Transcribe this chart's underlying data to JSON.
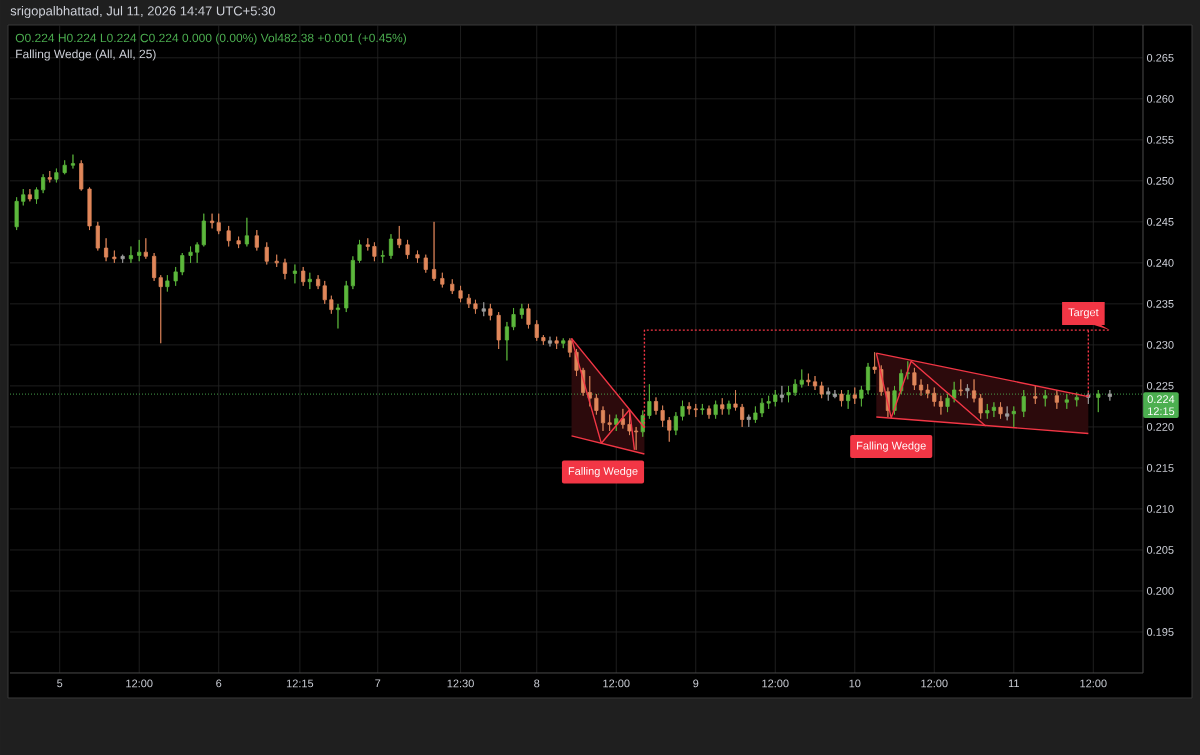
{
  "chart_data": {
    "type": "candlestick",
    "subtitle": "O0.224 H0.224 L0.224 C0.224 0.000 (0.00%) Vol482.38 +0.001 (+0.45%)",
    "annotations": [
      "srigopalbhattad, Jul 11, 2026 14:47 UTC+5:30",
      "Falling Wedge (All, All, 25)",
      "12:15",
      {
        "text": "Falling Wedge",
        "x": "2026-07-08T10:00",
        "y": 0.218
      },
      {
        "text": "Falling Wedge",
        "x": "2026-07-10T05:30",
        "y": 0.2211
      },
      {
        "text": "Target",
        "x": "2026-07-11T14:30",
        "y": 0.2318
      }
    ],
    "x": [
      "2026-07-04T17:30",
      "2026-07-04T18:30",
      "2026-07-04T19:30",
      "2026-07-04T20:30",
      "2026-07-04T21:30",
      "2026-07-04T22:30",
      "2026-07-04T23:30",
      "2026-07-05T00:45",
      "2026-07-05T02:00",
      "2026-07-05T03:15",
      "2026-07-05T04:30",
      "2026-07-05T05:45",
      "2026-07-05T07:00",
      "2026-07-05T08:15",
      "2026-07-05T09:30",
      "2026-07-05T10:45",
      "2026-07-05T12:00",
      "2026-07-05T13:00",
      "2026-07-05T14:15",
      "2026-07-05T15:15",
      "2026-07-05T16:15",
      "2026-07-05T17:30",
      "2026-07-05T18:30",
      "2026-07-05T19:45",
      "2026-07-05T20:45",
      "2026-07-05T21:45",
      "2026-07-05T23:00",
      "2026-07-06T00:00",
      "2026-07-06T01:30",
      "2026-07-06T03:00",
      "2026-07-06T04:15",
      "2026-07-06T05:45",
      "2026-07-06T07:15",
      "2026-07-06T08:45",
      "2026-07-06T10:00",
      "2026-07-06T11:30",
      "2026-07-06T12:45",
      "2026-07-06T13:45",
      "2026-07-06T15:00",
      "2026-07-06T16:00",
      "2026-07-06T17:00",
      "2026-07-06T18:00",
      "2026-07-06T19:15",
      "2026-07-06T20:15",
      "2026-07-06T21:15",
      "2026-07-06T22:30",
      "2026-07-06T23:30",
      "2026-07-07T00:45",
      "2026-07-07T02:00",
      "2026-07-07T03:15",
      "2026-07-07T04:30",
      "2026-07-07T06:00",
      "2026-07-07T07:15",
      "2026-07-07T08:30",
      "2026-07-07T09:45",
      "2026-07-07T11:15",
      "2026-07-07T12:30",
      "2026-07-07T13:45",
      "2026-07-07T14:45",
      "2026-07-07T16:00",
      "2026-07-07T17:00",
      "2026-07-07T18:15",
      "2026-07-07T19:30",
      "2026-07-07T20:30",
      "2026-07-07T21:45",
      "2026-07-07T22:45",
      "2026-07-08T00:00",
      "2026-07-08T01:00",
      "2026-07-08T02:00",
      "2026-07-08T03:00",
      "2026-07-08T04:00",
      "2026-07-08T05:00",
      "2026-07-08T06:00",
      "2026-07-08T07:00",
      "2026-07-08T08:00",
      "2026-07-08T09:00",
      "2026-07-08T10:00",
      "2026-07-08T11:00",
      "2026-07-08T12:00",
      "2026-07-08T13:00",
      "2026-07-08T14:00",
      "2026-07-08T15:00",
      "2026-07-08T16:00",
      "2026-07-08T17:00",
      "2026-07-08T18:00",
      "2026-07-08T19:00",
      "2026-07-08T20:00",
      "2026-07-08T21:00",
      "2026-07-08T22:00",
      "2026-07-08T23:00",
      "2026-07-09T00:00",
      "2026-07-09T01:00",
      "2026-07-09T02:00",
      "2026-07-09T03:00",
      "2026-07-09T04:00",
      "2026-07-09T05:00",
      "2026-07-09T06:00",
      "2026-07-09T07:00",
      "2026-07-09T08:00",
      "2026-07-09T09:00",
      "2026-07-09T10:00",
      "2026-07-09T11:00",
      "2026-07-09T12:00",
      "2026-07-09T13:00",
      "2026-07-09T14:00",
      "2026-07-09T15:00",
      "2026-07-09T16:00",
      "2026-07-09T17:00",
      "2026-07-09T18:00",
      "2026-07-09T19:00",
      "2026-07-09T20:00",
      "2026-07-09T21:00",
      "2026-07-09T22:00",
      "2026-07-09T23:00",
      "2026-07-10T00:00",
      "2026-07-10T01:00",
      "2026-07-10T02:00",
      "2026-07-10T03:00",
      "2026-07-10T04:00",
      "2026-07-10T05:00",
      "2026-07-10T06:00",
      "2026-07-10T07:00",
      "2026-07-10T08:00",
      "2026-07-10T09:00",
      "2026-07-10T10:00",
      "2026-07-10T11:00",
      "2026-07-10T12:00",
      "2026-07-10T13:00",
      "2026-07-10T14:00",
      "2026-07-10T15:00",
      "2026-07-10T16:00",
      "2026-07-10T17:00",
      "2026-07-10T18:00",
      "2026-07-10T19:00",
      "2026-07-10T20:00",
      "2026-07-10T21:00",
      "2026-07-10T22:00",
      "2026-07-10T23:00",
      "2026-07-11T00:00",
      "2026-07-11T01:30",
      "2026-07-11T03:15",
      "2026-07-11T04:45",
      "2026-07-11T06:30",
      "2026-07-11T08:00",
      "2026-07-11T09:30",
      "2026-07-11T11:15",
      "2026-07-11T12:45",
      "2026-07-11T14:30"
    ],
    "ohlc": [
      [
        0.2444,
        0.248,
        0.244,
        0.2475
      ],
      [
        0.2475,
        0.249,
        0.247,
        0.2483
      ],
      [
        0.2483,
        0.249,
        0.2475,
        0.2478
      ],
      [
        0.2478,
        0.2492,
        0.2472,
        0.2489
      ],
      [
        0.2489,
        0.2508,
        0.2485,
        0.2504
      ],
      [
        0.2504,
        0.2512,
        0.2498,
        0.2502
      ],
      [
        0.2502,
        0.2515,
        0.2498,
        0.251
      ],
      [
        0.251,
        0.2525,
        0.2508,
        0.2519
      ],
      [
        0.2519,
        0.2532,
        0.2515,
        0.2521
      ],
      [
        0.2521,
        0.2525,
        0.2488,
        0.249
      ],
      [
        0.249,
        0.2492,
        0.244,
        0.2445
      ],
      [
        0.2445,
        0.245,
        0.2415,
        0.2418
      ],
      [
        0.2418,
        0.243,
        0.2402,
        0.2407
      ],
      [
        0.2407,
        0.2415,
        0.24,
        0.2405
      ],
      [
        0.2405,
        0.241,
        0.24,
        0.2408
      ],
      [
        0.2405,
        0.242,
        0.24,
        0.2409
      ],
      [
        0.2409,
        0.2428,
        0.2402,
        0.2413
      ],
      [
        0.2413,
        0.243,
        0.2405,
        0.2408
      ],
      [
        0.2408,
        0.2412,
        0.2378,
        0.2382
      ],
      [
        0.2382,
        0.2385,
        0.2302,
        0.2371
      ],
      [
        0.2371,
        0.2385,
        0.2365,
        0.2378
      ],
      [
        0.2378,
        0.2395,
        0.2372,
        0.2389
      ],
      [
        0.2389,
        0.2412,
        0.2385,
        0.2409
      ],
      [
        0.2409,
        0.242,
        0.24,
        0.2413
      ],
      [
        0.2413,
        0.2425,
        0.24,
        0.2422
      ],
      [
        0.2422,
        0.246,
        0.242,
        0.2451
      ],
      [
        0.2451,
        0.246,
        0.2442,
        0.2449
      ],
      [
        0.2449,
        0.246,
        0.2435,
        0.2439
      ],
      [
        0.2439,
        0.2445,
        0.242,
        0.2427
      ],
      [
        0.2427,
        0.2432,
        0.2418,
        0.2423
      ],
      [
        0.2423,
        0.2455,
        0.242,
        0.2433
      ],
      [
        0.2433,
        0.244,
        0.2415,
        0.2419
      ],
      [
        0.2419,
        0.2425,
        0.2398,
        0.2402
      ],
      [
        0.2402,
        0.241,
        0.2395,
        0.24
      ],
      [
        0.24,
        0.2405,
        0.238,
        0.2387
      ],
      [
        0.2387,
        0.2398,
        0.2375,
        0.239
      ],
      [
        0.239,
        0.2395,
        0.2372,
        0.2377
      ],
      [
        0.2377,
        0.2388,
        0.2368,
        0.238
      ],
      [
        0.238,
        0.2385,
        0.2368,
        0.2372
      ],
      [
        0.2372,
        0.2378,
        0.235,
        0.2355
      ],
      [
        0.2355,
        0.236,
        0.2338,
        0.2343
      ],
      [
        0.2343,
        0.235,
        0.232,
        0.2345
      ],
      [
        0.2345,
        0.2378,
        0.234,
        0.2372
      ],
      [
        0.2372,
        0.2408,
        0.2368,
        0.2403
      ],
      [
        0.2403,
        0.2428,
        0.24,
        0.2422
      ],
      [
        0.2422,
        0.243,
        0.2415,
        0.242
      ],
      [
        0.242,
        0.2425,
        0.2402,
        0.2408
      ],
      [
        0.2408,
        0.2415,
        0.24,
        0.2409
      ],
      [
        0.2409,
        0.2435,
        0.2405,
        0.2429
      ],
      [
        0.2429,
        0.2445,
        0.2418,
        0.2422
      ],
      [
        0.2422,
        0.2428,
        0.2405,
        0.241
      ],
      [
        0.241,
        0.2415,
        0.24,
        0.2406
      ],
      [
        0.2406,
        0.241,
        0.2388,
        0.2392
      ],
      [
        0.2392,
        0.245,
        0.2378,
        0.2381
      ],
      [
        0.2381,
        0.2388,
        0.237,
        0.2374
      ],
      [
        0.2374,
        0.238,
        0.2362,
        0.2366
      ],
      [
        0.2366,
        0.2372,
        0.2352,
        0.2357
      ],
      [
        0.2357,
        0.2362,
        0.2345,
        0.235
      ],
      [
        0.235,
        0.2355,
        0.2338,
        0.2344
      ],
      [
        0.2344,
        0.2352,
        0.2335,
        0.2341
      ],
      [
        0.2344,
        0.235,
        0.233,
        0.2336
      ],
      [
        0.2336,
        0.234,
        0.2295,
        0.2306
      ],
      [
        0.2306,
        0.2328,
        0.2281,
        0.2322
      ],
      [
        0.2322,
        0.2345,
        0.2318,
        0.2337
      ],
      [
        0.2337,
        0.235,
        0.2332,
        0.2344
      ],
      [
        0.2344,
        0.235,
        0.232,
        0.2325
      ],
      [
        0.2325,
        0.233,
        0.2305,
        0.2309
      ],
      [
        0.2309,
        0.2312,
        0.23,
        0.2305
      ],
      [
        0.2305,
        0.231,
        0.2298,
        0.2302
      ],
      [
        0.2305,
        0.231,
        0.2295,
        0.2302
      ],
      [
        0.2302,
        0.2308,
        0.2296,
        0.2305
      ],
      [
        0.2305,
        0.2308,
        0.2285,
        0.2291
      ],
      [
        0.2291,
        0.2295,
        0.2262,
        0.2269
      ],
      [
        0.2269,
        0.2272,
        0.2238,
        0.2242
      ],
      [
        0.2242,
        0.2262,
        0.2225,
        0.2235
      ],
      [
        0.2235,
        0.224,
        0.2215,
        0.222
      ],
      [
        0.222,
        0.2225,
        0.2195,
        0.2205
      ],
      [
        0.2205,
        0.2215,
        0.2195,
        0.2203
      ],
      [
        0.2203,
        0.2215,
        0.2195,
        0.221
      ],
      [
        0.221,
        0.2222,
        0.2198,
        0.2203
      ],
      [
        0.2203,
        0.222,
        0.219,
        0.2195
      ],
      [
        0.2195,
        0.22,
        0.2172,
        0.2194
      ],
      [
        0.2194,
        0.222,
        0.2188,
        0.2214
      ],
      [
        0.2214,
        0.2252,
        0.221,
        0.2231
      ],
      [
        0.2231,
        0.2236,
        0.2215,
        0.222
      ],
      [
        0.222,
        0.2226,
        0.22,
        0.2208
      ],
      [
        0.2208,
        0.2212,
        0.2182,
        0.2196
      ],
      [
        0.2196,
        0.2218,
        0.219,
        0.2213
      ],
      [
        0.2213,
        0.2232,
        0.2208,
        0.2225
      ],
      [
        0.2225,
        0.223,
        0.2215,
        0.2222
      ],
      [
        0.2222,
        0.2228,
        0.2212,
        0.2221
      ],
      [
        0.2221,
        0.2228,
        0.2215,
        0.2222
      ],
      [
        0.2222,
        0.2226,
        0.221,
        0.2215
      ],
      [
        0.2215,
        0.2232,
        0.221,
        0.2227
      ],
      [
        0.2227,
        0.2235,
        0.2215,
        0.2222
      ],
      [
        0.2222,
        0.2232,
        0.2215,
        0.2228
      ],
      [
        0.2228,
        0.2245,
        0.222,
        0.2224
      ],
      [
        0.2224,
        0.2228,
        0.22,
        0.2209
      ],
      [
        0.2209,
        0.2215,
        0.22,
        0.2212
      ],
      [
        0.2209,
        0.2225,
        0.2205,
        0.2217
      ],
      [
        0.2217,
        0.2235,
        0.2212,
        0.2229
      ],
      [
        0.2229,
        0.2238,
        0.2222,
        0.2231
      ],
      [
        0.2231,
        0.2245,
        0.2225,
        0.2239
      ],
      [
        0.2239,
        0.225,
        0.223,
        0.2236
      ],
      [
        0.2239,
        0.225,
        0.223,
        0.2242
      ],
      [
        0.2242,
        0.2258,
        0.2238,
        0.2252
      ],
      [
        0.2252,
        0.227,
        0.2248,
        0.2257
      ],
      [
        0.2257,
        0.2265,
        0.225,
        0.2255
      ],
      [
        0.2255,
        0.2262,
        0.2245,
        0.225
      ],
      [
        0.225,
        0.2255,
        0.2235,
        0.224
      ],
      [
        0.224,
        0.2248,
        0.2232,
        0.2243
      ],
      [
        0.224,
        0.2245,
        0.2235,
        0.2237
      ],
      [
        0.224,
        0.2245,
        0.2225,
        0.2232
      ],
      [
        0.2232,
        0.2245,
        0.2222,
        0.2239
      ],
      [
        0.2239,
        0.2248,
        0.2228,
        0.2235
      ],
      [
        0.2235,
        0.225,
        0.2225,
        0.2245
      ],
      [
        0.2245,
        0.2278,
        0.224,
        0.2273
      ],
      [
        0.2273,
        0.2291,
        0.2265,
        0.227
      ],
      [
        0.227,
        0.2275,
        0.2238,
        0.2243
      ],
      [
        0.2243,
        0.2248,
        0.2212,
        0.222
      ],
      [
        0.222,
        0.225,
        0.2215,
        0.2244
      ],
      [
        0.2244,
        0.227,
        0.224,
        0.2265
      ],
      [
        0.2265,
        0.228,
        0.2258,
        0.2266
      ],
      [
        0.2266,
        0.2272,
        0.2245,
        0.2251
      ],
      [
        0.2251,
        0.2258,
        0.2238,
        0.2245
      ],
      [
        0.2245,
        0.2252,
        0.2235,
        0.2241
      ],
      [
        0.2241,
        0.2248,
        0.2225,
        0.2231
      ],
      [
        0.2231,
        0.2238,
        0.2215,
        0.2225
      ],
      [
        0.2225,
        0.224,
        0.2218,
        0.2235
      ],
      [
        0.2235,
        0.2255,
        0.223,
        0.2245
      ],
      [
        0.2245,
        0.2258,
        0.2238,
        0.2244
      ],
      [
        0.2244,
        0.2252,
        0.2235,
        0.2247
      ],
      [
        0.2244,
        0.2258,
        0.223,
        0.2235
      ],
      [
        0.2235,
        0.224,
        0.221,
        0.2217
      ],
      [
        0.2217,
        0.2228,
        0.221,
        0.222
      ],
      [
        0.222,
        0.223,
        0.2212,
        0.2224
      ],
      [
        0.2224,
        0.223,
        0.221,
        0.2216
      ],
      [
        0.2216,
        0.2225,
        0.2208,
        0.2213
      ],
      [
        0.2216,
        0.2225,
        0.2199,
        0.2219
      ],
      [
        0.2219,
        0.2245,
        0.2212,
        0.2237
      ],
      [
        0.2237,
        0.225,
        0.2228,
        0.2235
      ],
      [
        0.2235,
        0.2245,
        0.2225,
        0.2238
      ],
      [
        0.2238,
        0.2245,
        0.2222,
        0.223
      ],
      [
        0.223,
        0.224,
        0.2222,
        0.2233
      ],
      [
        0.2233,
        0.2242,
        0.2225,
        0.2236
      ],
      [
        0.2236,
        0.2242,
        0.2228,
        0.2239
      ],
      [
        0.2236,
        0.2245,
        0.2218,
        0.224
      ],
      [
        0.2237,
        0.2245,
        0.2232,
        0.224
      ]
    ],
    "colors": [
      "#5cb83c",
      "#5cb83c",
      "#e0875a",
      "#5cb83c",
      "#5cb83c",
      "#e0875a",
      "#5cb83c",
      "#5cb83c",
      "#5cb83c",
      "#e0875a",
      "#e0875a",
      "#e0875a",
      "#e0875a",
      "#e0875a",
      "#9e9e9e",
      "#5cb83c",
      "#5cb83c",
      "#e0875a",
      "#e0875a",
      "#e0875a",
      "#5cb83c",
      "#5cb83c",
      "#5cb83c",
      "#5cb83c",
      "#5cb83c",
      "#5cb83c",
      "#e0875a",
      "#e0875a",
      "#e0875a",
      "#e0875a",
      "#5cb83c",
      "#e0875a",
      "#e0875a",
      "#e0875a",
      "#e0875a",
      "#5cb83c",
      "#e0875a",
      "#5cb83c",
      "#e0875a",
      "#e0875a",
      "#e0875a",
      "#5cb83c",
      "#5cb83c",
      "#5cb83c",
      "#5cb83c",
      "#e0875a",
      "#e0875a",
      "#5cb83c",
      "#5cb83c",
      "#e0875a",
      "#e0875a",
      "#e0875a",
      "#e0875a",
      "#e0875a",
      "#e0875a",
      "#e0875a",
      "#e0875a",
      "#e0875a",
      "#e0875a",
      "#9e9e9e",
      "#e0875a",
      "#e0875a",
      "#5cb83c",
      "#5cb83c",
      "#5cb83c",
      "#e0875a",
      "#e0875a",
      "#e0875a",
      "#9e9e9e",
      "#e0875a",
      "#5cb83c",
      "#e0875a",
      "#e0875a",
      "#e0875a",
      "#e0875a",
      "#e0875a",
      "#e0875a",
      "#e0875a",
      "#5cb83c",
      "#e0875a",
      "#e0875a",
      "#e0875a",
      "#5cb83c",
      "#5cb83c",
      "#e0875a",
      "#e0875a",
      "#e0875a",
      "#5cb83c",
      "#5cb83c",
      "#e0875a",
      "#e0875a",
      "#5cb83c",
      "#e0875a",
      "#5cb83c",
      "#e0875a",
      "#5cb83c",
      "#e0875a",
      "#e0875a",
      "#9e9e9e",
      "#5cb83c",
      "#5cb83c",
      "#5cb83c",
      "#5cb83c",
      "#9e9e9e",
      "#5cb83c",
      "#5cb83c",
      "#5cb83c",
      "#e0875a",
      "#e0875a",
      "#e0875a",
      "#9e9e9e",
      "#9e9e9e",
      "#e0875a",
      "#5cb83c",
      "#e0875a",
      "#5cb83c",
      "#5cb83c",
      "#e0875a",
      "#e0875a",
      "#e0875a",
      "#5cb83c",
      "#5cb83c",
      "#5cb83c",
      "#e0875a",
      "#e0875a",
      "#e0875a",
      "#e0875a",
      "#e0875a",
      "#5cb83c",
      "#5cb83c",
      "#e0875a",
      "#9e9e9e",
      "#e0875a",
      "#e0875a",
      "#5cb83c",
      "#5cb83c",
      "#e0875a",
      "#9e9e9e",
      "#5cb83c",
      "#5cb83c",
      "#e0875a",
      "#5cb83c",
      "#e0875a",
      "#5cb83c",
      "#5cb83c",
      "#9e9e9e",
      "#5cb83c",
      "#9e9e9e"
    ],
    "series": [
      {
        "type": "line",
        "x": [
          "2026-07-08T05:15",
          "2026-07-08T16:15"
        ],
        "values": [
          0.2308,
          0.2199
        ],
        "lower": [
          0.2189,
          0.2167
        ],
        "upper": [
          0.2308,
          0.2199
        ],
        "color": "#f23645"
      },
      {
        "type": "line",
        "x": [
          "2026-07-08T05:15",
          "2026-07-08T16:15"
        ],
        "values": [
          0.2189,
          0.2167
        ],
        "color": "#f23645"
      },
      {
        "type": "line",
        "x": [
          "2026-07-08T05:15",
          "2026-07-08T09:45",
          "2026-07-08T14:00",
          "2026-07-08T14:45"
        ],
        "values": [
          0.2308,
          0.218,
          0.2221,
          0.2172
        ],
        "color": "#f23645"
      },
      {
        "type": "line",
        "x": [
          "2026-07-10T03:15",
          "2026-07-11T11:15"
        ],
        "values": [
          0.229,
          0.2237
        ],
        "lower": [
          0.2212,
          0.2192
        ],
        "upper": [
          0.229,
          0.2237
        ],
        "color": "#f23645"
      },
      {
        "type": "line",
        "x": [
          "2026-07-10T03:15",
          "2026-07-11T11:15"
        ],
        "values": [
          0.2212,
          0.2192
        ],
        "color": "#f23645"
      },
      {
        "type": "line",
        "x": [
          "2026-07-10T03:15",
          "2026-07-10T05:30",
          "2026-07-10T08:30",
          "2026-07-10T19:45"
        ],
        "values": [
          0.229,
          0.2211,
          0.228,
          0.2201
        ],
        "color": "#f23645"
      },
      {
        "type": "line",
        "x": [
          "2026-07-08T16:15",
          "2026-07-08T16:15",
          "2026-07-11T14:30"
        ],
        "values": [
          0.2199,
          0.2318,
          0.2318
        ],
        "color": "#f23645",
        "line_style": "dotted"
      },
      {
        "type": "line",
        "x": [
          "2026-07-11T11:15",
          "2026-07-11T11:15"
        ],
        "values": [
          0.2237,
          0.2318
        ],
        "color": "#f23645",
        "line_style": "dotted"
      }
    ],
    "xlim": [
      "2026-07-04T16:30",
      "2026-07-11T19:30"
    ],
    "ylim": [
      0.19,
      0.269
    ],
    "xticks": [
      {
        "value": "2026-07-05",
        "label": "5"
      },
      {
        "value": "2026-07-05T12:00",
        "label": "12:00"
      },
      {
        "value": "2026-07-06",
        "label": "6"
      },
      {
        "value": "2026-07-06T12:15",
        "label": "12:15"
      },
      {
        "value": "2026-07-07",
        "label": "7"
      },
      {
        "value": "2026-07-07T12:30",
        "label": "12:30"
      },
      {
        "value": "2026-07-08",
        "label": "8"
      },
      {
        "value": "2026-07-08T12:00",
        "label": "12:00"
      },
      {
        "value": "2026-07-09",
        "label": "9"
      },
      {
        "value": "2026-07-09T12:00",
        "label": "12:00"
      },
      {
        "value": "2026-07-10",
        "label": "10"
      },
      {
        "value": "2026-07-10T12:00",
        "label": "12:00"
      },
      {
        "value": "2026-07-11",
        "label": "11"
      },
      {
        "value": "2026-07-11T12:00",
        "label": "12:00"
      }
    ],
    "yticks": [
      0.195,
      {
        "value": 0.2,
        "label": "0.200"
      },
      0.205,
      {
        "value": 0.21,
        "label": "0.210"
      },
      0.215,
      {
        "value": 0.22,
        "label": "0.220"
      },
      0.225,
      {
        "value": 0.23,
        "label": "0.230"
      },
      0.235,
      {
        "value": 0.24,
        "label": "0.240"
      },
      0.245,
      {
        "value": 0.25,
        "label": "0.250"
      },
      0.255,
      {
        "value": 0.26,
        "label": "0.260"
      },
      0.265
    ],
    "grid": true,
    "ref_lines": [
      {
        "axis": "y",
        "value": 0.224,
        "label": "0.224",
        "color": "#4caf50",
        "line_style": "dotted"
      }
    ]
  }
}
